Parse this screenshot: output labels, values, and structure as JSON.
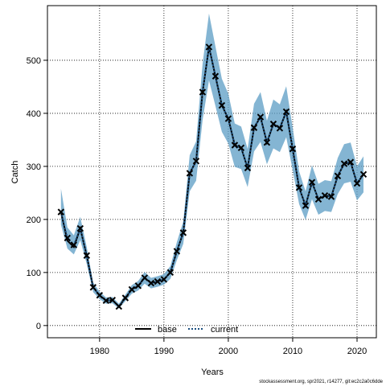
{
  "chart_data": {
    "type": "line",
    "xlabel": "Years",
    "ylabel": "Catch",
    "footnote": "stockassessment.org, spr2021, r14277, git:ec2c2a0c6dde",
    "x": [
      1974,
      1975,
      1976,
      1977,
      1978,
      1979,
      1980,
      1981,
      1982,
      1983,
      1984,
      1985,
      1986,
      1987,
      1988,
      1989,
      1990,
      1991,
      1992,
      1993,
      1994,
      1995,
      1996,
      1997,
      1998,
      1999,
      2000,
      2001,
      2002,
      2003,
      2004,
      2005,
      2006,
      2007,
      2008,
      2009,
      2010,
      2011,
      2012,
      2013,
      2014,
      2015,
      2016,
      2017,
      2018,
      2019,
      2020,
      2021
    ],
    "series": [
      {
        "name": "base",
        "color": "#000000",
        "dash": false,
        "values": [
          214,
          160,
          148,
          183,
          132,
          72,
          57,
          47,
          48,
          36,
          52,
          68,
          75,
          90,
          80,
          83,
          87,
          100,
          140,
          175,
          287,
          310,
          440,
          525,
          470,
          415,
          390,
          340,
          335,
          297,
          373,
          393,
          345,
          380,
          372,
          403,
          333,
          260,
          226,
          270,
          238,
          245,
          243,
          282,
          305,
          308,
          268,
          285
        ]
      },
      {
        "name": "current",
        "color": "#1b4f80",
        "dash": true,
        "band_color": "#5b9cc4",
        "markers": true,
        "values": [
          214,
          165,
          152,
          183,
          132,
          72,
          57,
          47,
          48,
          36,
          52,
          68,
          75,
          90,
          80,
          83,
          87,
          100,
          140,
          175,
          287,
          310,
          440,
          525,
          470,
          415,
          390,
          340,
          335,
          297,
          373,
          393,
          345,
          380,
          372,
          403,
          333,
          260,
          226,
          270,
          238,
          245,
          243,
          282,
          305,
          308,
          268,
          285
        ],
        "lower": [
          190,
          145,
          134,
          161,
          116,
          63,
          50,
          41,
          42,
          32,
          46,
          60,
          66,
          79,
          70,
          73,
          77,
          88,
          123,
          154,
          253,
          273,
          387,
          462,
          414,
          365,
          343,
          299,
          295,
          261,
          328,
          346,
          304,
          334,
          327,
          355,
          293,
          229,
          199,
          238,
          209,
          216,
          214,
          248,
          268,
          271,
          236,
          251
        ],
        "upper": [
          258,
          185,
          170,
          205,
          148,
          81,
          64,
          53,
          54,
          41,
          58,
          76,
          84,
          101,
          90,
          93,
          97,
          112,
          157,
          196,
          321,
          347,
          493,
          588,
          526,
          465,
          437,
          381,
          375,
          333,
          418,
          440,
          386,
          426,
          417,
          451,
          373,
          291,
          253,
          302,
          267,
          274,
          272,
          316,
          342,
          345,
          300,
          319
        ]
      }
    ],
    "xlim": [
      1971.9,
      2023.0
    ],
    "ylim": [
      -23,
      603
    ],
    "xticks": [
      1980,
      1990,
      2000,
      2010,
      2020
    ],
    "yticks": [
      0,
      100,
      200,
      300,
      400,
      500
    ],
    "grid": true,
    "legend": "bottom"
  }
}
